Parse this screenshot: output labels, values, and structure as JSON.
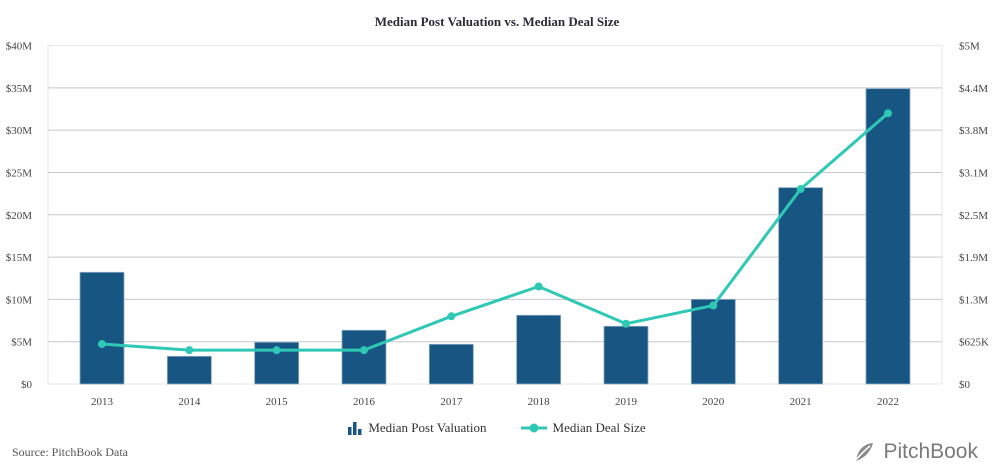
{
  "chart_data": {
    "type": "bar+line",
    "title": "Median Post Valuation vs. Median Deal Size",
    "categories": [
      "2013",
      "2014",
      "2015",
      "2016",
      "2017",
      "2018",
      "2019",
      "2020",
      "2021",
      "2022"
    ],
    "series": [
      {
        "name": "Median Post Valuation",
        "type": "bar",
        "axis": "left",
        "color": "#175683",
        "values": [
          13.2,
          3.27,
          4.93,
          6.35,
          4.69,
          8.12,
          6.82,
          10.0,
          23.2,
          34.9
        ]
      },
      {
        "name": "Median Deal Size",
        "type": "line",
        "axis": "right",
        "color": "#2ec8b4",
        "values": [
          0.59,
          0.5,
          0.5,
          0.5,
          1.0,
          1.44,
          0.89,
          1.16,
          2.88,
          4.0
        ]
      }
    ],
    "left_axis": {
      "unit": "$M",
      "ylim": [
        0,
        40
      ],
      "ticks": [
        0,
        5,
        10,
        15,
        20,
        25,
        30,
        35,
        40
      ],
      "tick_labels": [
        "$0",
        "$5M",
        "$10M",
        "$15M",
        "$20M",
        "$25M",
        "$30M",
        "$35M",
        "$40M"
      ]
    },
    "right_axis": {
      "unit": "$M",
      "ylim": [
        0,
        5
      ],
      "ticks": [
        0,
        0.625,
        1.25,
        1.875,
        2.5,
        3.125,
        3.75,
        4.375,
        5
      ],
      "tick_labels": [
        "$0",
        "$625K",
        "$1.3M",
        "$1.9M",
        "$2.5M",
        "$3.1M",
        "$3.8M",
        "$4.4M",
        "$5M"
      ]
    },
    "grid": true,
    "legend_position": "bottom"
  },
  "footer": {
    "source": "Source: PitchBook Data",
    "logo": "PitchBook"
  }
}
